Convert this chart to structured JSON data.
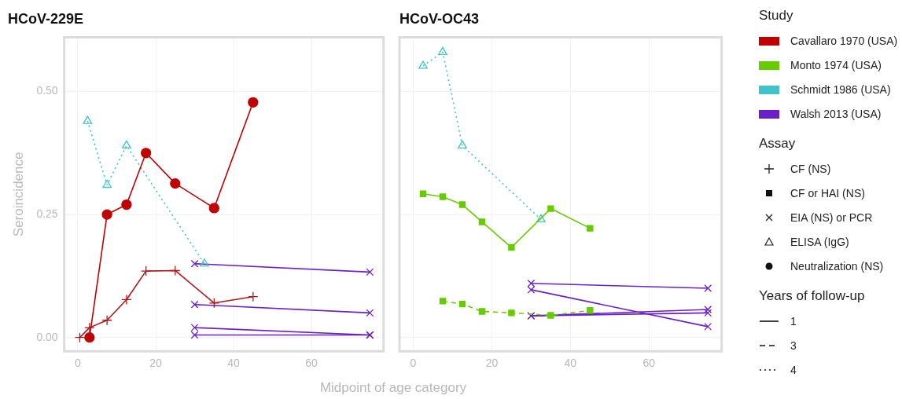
{
  "chart_data": [
    {
      "type": "line",
      "title": "HCoV-229E",
      "xlabel": "Midpoint of age category",
      "ylabel": "Seroincidence",
      "xlim": [
        -3.5,
        78.5
      ],
      "xticks": [
        0,
        20,
        40,
        60
      ],
      "ylim": [
        -0.028,
        0.61
      ],
      "yticks": [
        {
          "value": 0,
          "label": "0.00"
        },
        {
          "value": 0.25,
          "label": "0.25"
        },
        {
          "value": 0.5,
          "label": "0.50"
        }
      ],
      "grid": true,
      "legend": "right",
      "series": [
        {
          "name": "Cavallaro 1970 (USA)",
          "color": "#c00000",
          "marker": "circle",
          "line_style": "solid",
          "x": [
            3,
            7.5,
            12.5,
            17.5,
            25,
            35,
            45
          ],
          "values": [
            0,
            0.25,
            0.27,
            0.375,
            0.313,
            0.263,
            0.478
          ]
        },
        {
          "color": "#b01818",
          "marker": "cross",
          "line_style": "solid",
          "x": [
            0.5,
            3,
            7.5,
            12.5,
            17.5,
            25,
            35,
            45
          ],
          "values": [
            0,
            0.02,
            0.035,
            0.077,
            0.135,
            0.136,
            0.07,
            0.083
          ]
        },
        {
          "name": "Schmidt 1986 (USA)",
          "color": "#40c4cc",
          "marker": "triangle",
          "line_style": "dotted",
          "x": [
            2.5,
            7.5,
            12.5,
            32.5
          ],
          "values": [
            0.44,
            0.31,
            0.39,
            0.15
          ]
        },
        {
          "name": "Walsh 2013 (USA)",
          "color": "#6a1fc8",
          "marker": "x",
          "line_style": "solid",
          "x": [
            30,
            75
          ],
          "values": [
            0.15,
            0.133
          ]
        },
        {
          "color": "#6a1fc8",
          "marker": "x",
          "line_style": "solid",
          "x": [
            30,
            75
          ],
          "values": [
            0.067,
            0.05
          ]
        },
        {
          "color": "#6a1fc8",
          "marker": "x",
          "line_style": "solid",
          "x": [
            30,
            75
          ],
          "values": [
            0.02,
            0.005
          ]
        },
        {
          "color": "#6a1fc8",
          "marker": "x",
          "line_style": "solid",
          "x": [
            30,
            75
          ],
          "values": [
            0.005,
            0.005
          ]
        }
      ]
    },
    {
      "type": "line",
      "title": "HCoV-OC43",
      "tick_labels": "x",
      "xlim": [
        -3.5,
        78.5
      ],
      "xticks": [
        0,
        20,
        40,
        60
      ],
      "ylim": [
        -0.028,
        0.61
      ],
      "yticks": [
        0,
        0.25,
        0.5
      ],
      "grid": true,
      "legend": "right",
      "legend_title": "Study",
      "annotations": [
        "Assay",
        "CF (NS)",
        "CF or HAI (NS)",
        "EIA (NS) or PCR",
        "ELISA (IgG)",
        "Neutralization (NS)",
        "Years of follow-up",
        "1",
        "3",
        "4"
      ],
      "series": [
        {
          "name": "Monto 1974 (USA)",
          "color": "#66cc00",
          "marker": "square",
          "line_style": "solid",
          "x": [
            2.5,
            7.5,
            12.5,
            17.5,
            25,
            35,
            45
          ],
          "values": [
            0.292,
            0.286,
            0.27,
            0.235,
            0.183,
            0.262,
            0.222
          ]
        },
        {
          "color": "#66cc00",
          "marker": "square",
          "line_style": "dashed",
          "x": [
            7.5,
            12.5,
            17.5,
            25,
            35,
            45
          ],
          "values": [
            0.074,
            0.068,
            0.053,
            0.05,
            0.045,
            0.055
          ]
        },
        {
          "name": "Schmidt 1986 (USA)",
          "color": "#40c4cc",
          "marker": "triangle",
          "line_style": "dotted",
          "x": [
            2.5,
            7.5,
            12.5,
            32.5
          ],
          "values": [
            0.552,
            0.58,
            0.39,
            0.24
          ]
        },
        {
          "name": "Walsh 2013 (USA)",
          "color": "#6a1fc8",
          "marker": "x",
          "line_style": "solid",
          "x": [
            30,
            75
          ],
          "values": [
            0.11,
            0.1
          ]
        },
        {
          "color": "#6a1fc8",
          "marker": "x",
          "line_style": "solid",
          "x": [
            30,
            75
          ],
          "values": [
            0.097,
            0.022
          ]
        },
        {
          "color": "#6a1fc8",
          "marker": "x",
          "line_style": "solid",
          "x": [
            30,
            75
          ],
          "values": [
            0.044,
            0.057
          ]
        },
        {
          "color": "#6a1fc8",
          "marker": "x",
          "line_style": "solid",
          "x": [
            30,
            75
          ],
          "values": [
            0.044,
            0.05
          ]
        }
      ]
    }
  ]
}
